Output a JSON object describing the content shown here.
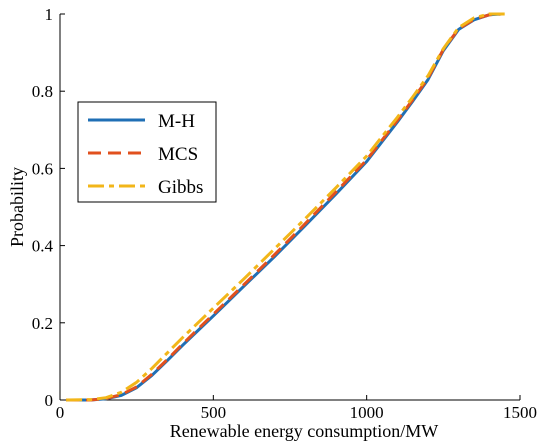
{
  "chart_data": {
    "type": "line",
    "title": "",
    "xlabel": "Renewable energy consumption/MW",
    "ylabel": "Probability",
    "xlim": [
      0,
      1500
    ],
    "ylim": [
      0,
      1
    ],
    "xticks": [
      0,
      500,
      1000,
      1500
    ],
    "yticks": [
      0,
      0.2,
      0.4,
      0.6,
      0.8,
      1
    ],
    "xtick_labels": [
      "0",
      "500",
      "1000",
      "1500"
    ],
    "ytick_labels": [
      "0",
      "0.2",
      "0.4",
      "0.6",
      "0.8",
      "1"
    ],
    "grid": false,
    "legend_position": "upper-left",
    "series": [
      {
        "name": "M-H",
        "color": "#1f6fb5",
        "dash": "solid",
        "x": [
          20,
          100,
          150,
          200,
          250,
          300,
          350,
          400,
          450,
          500,
          600,
          700,
          800,
          900,
          1000,
          1100,
          1150,
          1200,
          1250,
          1300,
          1350,
          1400,
          1440
        ],
        "y": [
          0,
          0,
          0.003,
          0.012,
          0.032,
          0.064,
          0.102,
          0.142,
          0.18,
          0.218,
          0.295,
          0.372,
          0.452,
          0.534,
          0.618,
          0.72,
          0.774,
          0.83,
          0.905,
          0.96,
          0.985,
          0.998,
          1
        ]
      },
      {
        "name": "MCS",
        "color": "#e1501e",
        "dash": "long-dash",
        "x": [
          20,
          100,
          150,
          200,
          250,
          300,
          350,
          400,
          450,
          500,
          600,
          700,
          800,
          900,
          1000,
          1100,
          1150,
          1200,
          1250,
          1300,
          1350,
          1400,
          1440
        ],
        "y": [
          0,
          0,
          0.004,
          0.014,
          0.034,
          0.067,
          0.105,
          0.145,
          0.184,
          0.222,
          0.299,
          0.377,
          0.457,
          0.539,
          0.622,
          0.724,
          0.778,
          0.834,
          0.908,
          0.962,
          0.986,
          0.998,
          1
        ]
      },
      {
        "name": "Gibbs",
        "color": "#f2b619",
        "dash": "dash-dot",
        "x": [
          20,
          100,
          150,
          200,
          250,
          300,
          350,
          400,
          450,
          500,
          600,
          700,
          800,
          900,
          1000,
          1100,
          1150,
          1200,
          1250,
          1300,
          1350,
          1400,
          1450
        ],
        "y": [
          0,
          0.001,
          0.006,
          0.02,
          0.046,
          0.082,
          0.122,
          0.162,
          0.2,
          0.238,
          0.314,
          0.392,
          0.47,
          0.55,
          0.632,
          0.732,
          0.785,
          0.84,
          0.91,
          0.965,
          0.99,
          1,
          1
        ]
      }
    ]
  }
}
